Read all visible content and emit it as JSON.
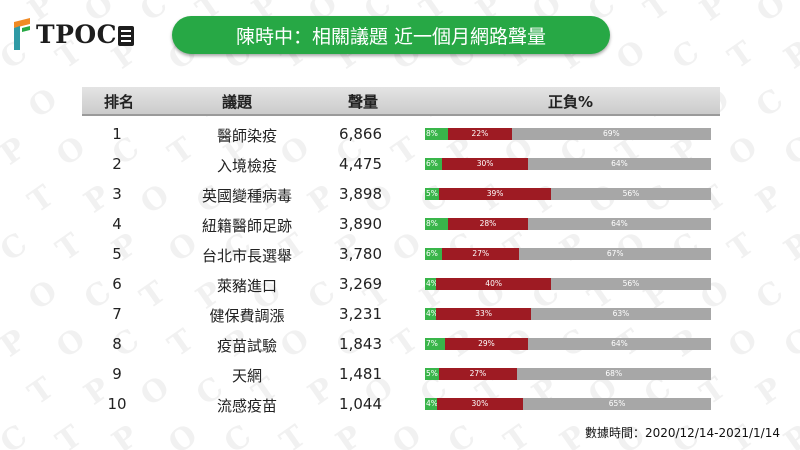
{
  "brand": {
    "logo_text": "TPOC",
    "colors": {
      "green": "#27a845",
      "orange": "#f08a24",
      "teal": "#2f9aa5"
    }
  },
  "title": "陳時中：相關議題 近一個月網路聲量",
  "header": {
    "rank": "排名",
    "topic": "議題",
    "volume": "聲量",
    "sentiment": "正負%"
  },
  "chart_data": {
    "type": "table",
    "columns": [
      "排名",
      "議題",
      "聲量",
      "正負%"
    ],
    "sentiment_colors": {
      "positive": "#39b54a",
      "negative": "#9e1b23",
      "neutral": "#a7a7a7"
    },
    "rows": [
      {
        "rank": "1",
        "topic": "醫師染疫",
        "volume": "6,866",
        "pos": 8,
        "neg": 22,
        "neu": 69,
        "pos_label": "8%",
        "neg_label": "22%",
        "neu_label": "69%"
      },
      {
        "rank": "2",
        "topic": "入境檢疫",
        "volume": "4,475",
        "pos": 6,
        "neg": 30,
        "neu": 64,
        "pos_label": "6%",
        "neg_label": "30%",
        "neu_label": "64%"
      },
      {
        "rank": "3",
        "topic": "英國變種病毒",
        "volume": "3,898",
        "pos": 5,
        "neg": 39,
        "neu": 56,
        "pos_label": "5%",
        "neg_label": "39%",
        "neu_label": "56%"
      },
      {
        "rank": "4",
        "topic": "紐籍醫師足跡",
        "volume": "3,890",
        "pos": 8,
        "neg": 28,
        "neu": 64,
        "pos_label": "8%",
        "neg_label": "28%",
        "neu_label": "64%"
      },
      {
        "rank": "5",
        "topic": "台北市長選舉",
        "volume": "3,780",
        "pos": 6,
        "neg": 27,
        "neu": 67,
        "pos_label": "6%",
        "neg_label": "27%",
        "neu_label": "67%"
      },
      {
        "rank": "6",
        "topic": "萊豬進口",
        "volume": "3,269",
        "pos": 4,
        "neg": 40,
        "neu": 56,
        "pos_label": "4%",
        "neg_label": "40%",
        "neu_label": "56%"
      },
      {
        "rank": "7",
        "topic": "健保費調漲",
        "volume": "3,231",
        "pos": 4,
        "neg": 33,
        "neu": 63,
        "pos_label": "4%",
        "neg_label": "33%",
        "neu_label": "63%"
      },
      {
        "rank": "8",
        "topic": "疫苗試驗",
        "volume": "1,843",
        "pos": 7,
        "neg": 29,
        "neu": 64,
        "pos_label": "7%",
        "neg_label": "29%",
        "neu_label": "64%"
      },
      {
        "rank": "9",
        "topic": "天網",
        "volume": "1,481",
        "pos": 5,
        "neg": 27,
        "neu": 68,
        "pos_label": "5%",
        "neg_label": "27%",
        "neu_label": "68%"
      },
      {
        "rank": "10",
        "topic": "流感疫苗",
        "volume": "1,044",
        "pos": 4,
        "neg": 30,
        "neu": 65,
        "pos_label": "4%",
        "neg_label": "30%",
        "neu_label": "65%"
      }
    ]
  },
  "footer": "數據時間：2020/12/14-2021/1/14"
}
